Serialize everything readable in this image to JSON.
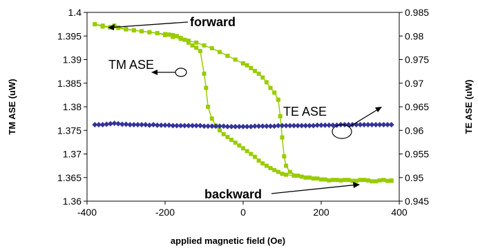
{
  "chart_data": {
    "type": "scatter",
    "xlabel": "applied magnetic field (Oe)",
    "ylabel_left": "TM ASE (uW)",
    "ylabel_right": "TE ASE (uW)",
    "xlim": [
      -400,
      400
    ],
    "ylim_left": [
      1.36,
      1.4
    ],
    "ylim_right": [
      0.945,
      0.985
    ],
    "x_ticks": [
      "-400",
      "-200",
      "0",
      "200",
      "400"
    ],
    "y_left_ticks": [
      "1.36",
      "1.365",
      "1.37",
      "1.375",
      "1.38",
      "1.385",
      "1.39",
      "1.395",
      "1.4"
    ],
    "y_right_ticks": [
      "0.945",
      "0.95",
      "0.955",
      "0.96",
      "0.965",
      "0.97",
      "0.975",
      "0.98",
      "0.985"
    ],
    "grid": false,
    "legend": "none",
    "annotations": {
      "forward": "forward",
      "backward": "backward",
      "tm_ase": "TM ASE",
      "te_ase": "TE ASE"
    },
    "colors": {
      "tm": "#99cc00",
      "te": "#333399"
    },
    "series": [
      {
        "key": "tm_forward",
        "axis": "left",
        "marker": "square",
        "points": [
          [
            -380,
            1.3975
          ],
          [
            -360,
            1.397
          ],
          [
            -340,
            1.3968
          ],
          [
            -330,
            1.3972
          ],
          [
            -320,
            1.3968
          ],
          [
            -300,
            1.3965
          ],
          [
            -280,
            1.3962
          ],
          [
            -260,
            1.396
          ],
          [
            -240,
            1.3958
          ],
          [
            -220,
            1.3956
          ],
          [
            -200,
            1.3954
          ],
          [
            -190,
            1.3953
          ],
          [
            -180,
            1.3952
          ],
          [
            -170,
            1.395
          ],
          [
            -160,
            1.3946
          ],
          [
            -150,
            1.3942
          ],
          [
            -140,
            1.3936
          ],
          [
            -130,
            1.393
          ],
          [
            -120,
            1.3925
          ],
          [
            -110,
            1.3918
          ],
          [
            -100,
            1.387
          ],
          [
            -95,
            1.384
          ],
          [
            -90,
            1.38
          ],
          [
            -80,
            1.3775
          ],
          [
            -70,
            1.376
          ],
          [
            -60,
            1.375
          ],
          [
            -50,
            1.3742
          ],
          [
            -40,
            1.3736
          ],
          [
            -30,
            1.373
          ],
          [
            -20,
            1.3724
          ],
          [
            -10,
            1.3718
          ],
          [
            0,
            1.3712
          ],
          [
            10,
            1.3706
          ],
          [
            20,
            1.37
          ],
          [
            30,
            1.3694
          ],
          [
            40,
            1.3686
          ],
          [
            50,
            1.368
          ],
          [
            60,
            1.3675
          ],
          [
            70,
            1.367
          ],
          [
            80,
            1.3666
          ],
          [
            90,
            1.3662
          ],
          [
            100,
            1.3658
          ],
          [
            110,
            1.3656
          ],
          [
            130,
            1.3654
          ],
          [
            150,
            1.3652
          ],
          [
            170,
            1.365
          ],
          [
            190,
            1.3648
          ],
          [
            210,
            1.3646
          ],
          [
            230,
            1.3645
          ],
          [
            250,
            1.3644
          ],
          [
            270,
            1.3645
          ],
          [
            290,
            1.3643
          ],
          [
            310,
            1.3645
          ],
          [
            330,
            1.3642
          ],
          [
            350,
            1.3644
          ],
          [
            370,
            1.3643
          ],
          [
            380,
            1.3644
          ]
        ]
      },
      {
        "key": "tm_backward",
        "axis": "left",
        "marker": "square",
        "points": [
          [
            380,
            1.3643
          ],
          [
            360,
            1.3645
          ],
          [
            340,
            1.3642
          ],
          [
            320,
            1.3644
          ],
          [
            300,
            1.3645
          ],
          [
            280,
            1.3643
          ],
          [
            260,
            1.3645
          ],
          [
            240,
            1.3645
          ],
          [
            220,
            1.3644
          ],
          [
            200,
            1.3646
          ],
          [
            180,
            1.3648
          ],
          [
            160,
            1.365
          ],
          [
            140,
            1.3654
          ],
          [
            120,
            1.3662
          ],
          [
            110,
            1.3675
          ],
          [
            105,
            1.3695
          ],
          [
            100,
            1.3735
          ],
          [
            95,
            1.378
          ],
          [
            90,
            1.3815
          ],
          [
            80,
            1.383
          ],
          [
            70,
            1.384
          ],
          [
            60,
            1.3852
          ],
          [
            50,
            1.3862
          ],
          [
            40,
            1.387
          ],
          [
            30,
            1.3876
          ],
          [
            20,
            1.3882
          ],
          [
            10,
            1.3888
          ],
          [
            0,
            1.3892
          ],
          [
            -20,
            1.39
          ],
          [
            -40,
            1.3908
          ],
          [
            -60,
            1.3916
          ],
          [
            -80,
            1.3924
          ],
          [
            -100,
            1.393
          ],
          [
            -120,
            1.3936
          ],
          [
            -140,
            1.394
          ],
          [
            -160,
            1.3944
          ],
          [
            -180,
            1.3948
          ],
          [
            -200,
            1.3952
          ],
          [
            -220,
            1.3956
          ],
          [
            -240,
            1.3958
          ],
          [
            -260,
            1.396
          ],
          [
            -280,
            1.3962
          ],
          [
            -300,
            1.3964
          ],
          [
            -320,
            1.3967
          ],
          [
            -340,
            1.3969
          ],
          [
            -360,
            1.3972
          ],
          [
            -380,
            1.3975
          ]
        ]
      },
      {
        "key": "te",
        "axis": "right",
        "marker": "diamond",
        "points": [
          [
            -380,
            0.9612
          ],
          [
            -370,
            0.9612
          ],
          [
            -360,
            0.9612
          ],
          [
            -350,
            0.9613
          ],
          [
            -340,
            0.9614
          ],
          [
            -330,
            0.9615
          ],
          [
            -320,
            0.9614
          ],
          [
            -310,
            0.9613
          ],
          [
            -300,
            0.9613
          ],
          [
            -290,
            0.9612
          ],
          [
            -280,
            0.9612
          ],
          [
            -270,
            0.9612
          ],
          [
            -260,
            0.9612
          ],
          [
            -250,
            0.9612
          ],
          [
            -240,
            0.9611
          ],
          [
            -230,
            0.9612
          ],
          [
            -220,
            0.9611
          ],
          [
            -210,
            0.9611
          ],
          [
            -200,
            0.9611
          ],
          [
            -190,
            0.9611
          ],
          [
            -180,
            0.961
          ],
          [
            -170,
            0.961
          ],
          [
            -160,
            0.961
          ],
          [
            -150,
            0.961
          ],
          [
            -140,
            0.961
          ],
          [
            -130,
            0.961
          ],
          [
            -120,
            0.961
          ],
          [
            -110,
            0.961
          ],
          [
            -100,
            0.9609
          ],
          [
            -90,
            0.9609
          ],
          [
            -80,
            0.9609
          ],
          [
            -70,
            0.9609
          ],
          [
            -60,
            0.9609
          ],
          [
            -50,
            0.9609
          ],
          [
            -40,
            0.9608
          ],
          [
            -30,
            0.9608
          ],
          [
            -20,
            0.9608
          ],
          [
            -10,
            0.9608
          ],
          [
            0,
            0.9608
          ],
          [
            10,
            0.9608
          ],
          [
            20,
            0.9608
          ],
          [
            30,
            0.9609
          ],
          [
            40,
            0.9609
          ],
          [
            50,
            0.9609
          ],
          [
            60,
            0.9609
          ],
          [
            70,
            0.9609
          ],
          [
            80,
            0.9609
          ],
          [
            90,
            0.961
          ],
          [
            100,
            0.961
          ],
          [
            110,
            0.961
          ],
          [
            120,
            0.961
          ],
          [
            130,
            0.961
          ],
          [
            140,
            0.961
          ],
          [
            150,
            0.961
          ],
          [
            160,
            0.961
          ],
          [
            170,
            0.961
          ],
          [
            180,
            0.961
          ],
          [
            190,
            0.9611
          ],
          [
            200,
            0.9611
          ],
          [
            210,
            0.9611
          ],
          [
            220,
            0.9611
          ],
          [
            230,
            0.9611
          ],
          [
            240,
            0.9611
          ],
          [
            250,
            0.9612
          ],
          [
            260,
            0.9612
          ],
          [
            270,
            0.9612
          ],
          [
            280,
            0.9612
          ],
          [
            290,
            0.9612
          ],
          [
            300,
            0.9612
          ],
          [
            310,
            0.9612
          ],
          [
            320,
            0.9612
          ],
          [
            330,
            0.9612
          ],
          [
            340,
            0.9612
          ],
          [
            350,
            0.9612
          ],
          [
            360,
            0.9612
          ],
          [
            370,
            0.9612
          ],
          [
            380,
            0.9612
          ]
        ]
      }
    ]
  }
}
